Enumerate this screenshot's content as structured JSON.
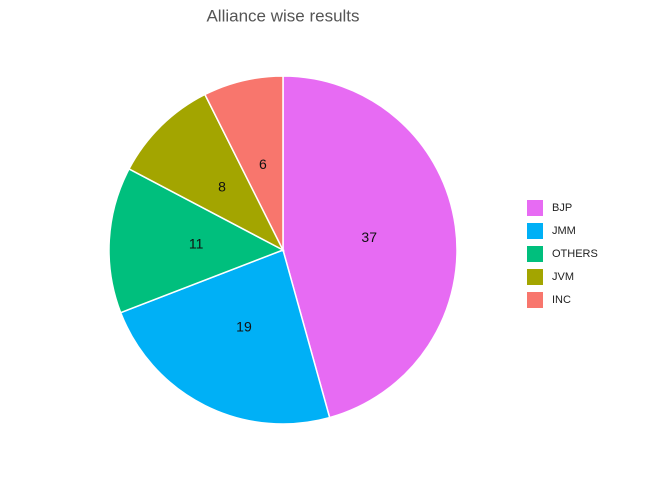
{
  "chart_data": {
    "type": "pie",
    "title": "Alliance wise results",
    "categories": [
      "BJP",
      "JMM",
      "OTHERS",
      "JVM",
      "INC"
    ],
    "values": [
      37,
      19,
      11,
      8,
      6
    ],
    "colors": [
      "#E76BF3",
      "#00B0F6",
      "#00BF7D",
      "#A3A500",
      "#F8766D"
    ]
  }
}
